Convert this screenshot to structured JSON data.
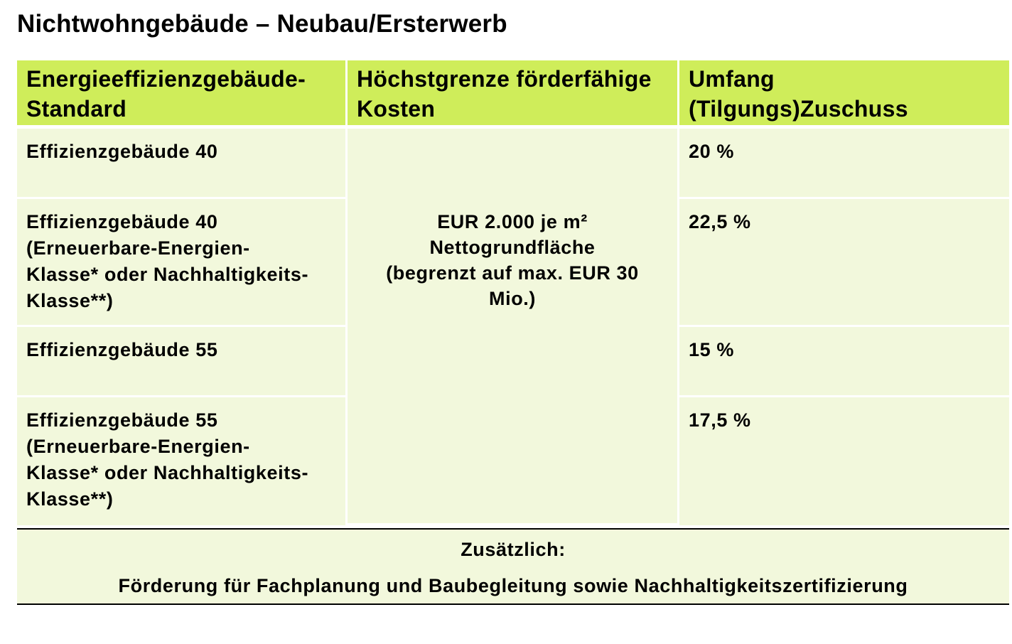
{
  "page": {
    "title": "Nichtwohngebäude – Neubau/Ersterwerb"
  },
  "table": {
    "headers": [
      "Energieeffizienzgebäude-\nStandard",
      "Höchstgrenze förderfähige\nKosten",
      "Umfang\n(Tilgungs)Zuschuss"
    ],
    "rows": [
      {
        "standard": "Effizienzgebäude  40",
        "zuschuss": "20 %"
      },
      {
        "standard": "Effizienzgebäude  40\n(Erneuerbare-Energien-\nKlasse*  oder Nachhaltigkeits-\nKlasse**)",
        "zuschuss": "22,5 %"
      },
      {
        "standard": "Effizienzgebäude  55",
        "zuschuss": "15 %"
      },
      {
        "standard": "Effizienzgebäude  55\n(Erneuerbare-Energien-\nKlasse*  oder Nachhaltigkeits-\nKlasse**)",
        "zuschuss": "17,5 %"
      }
    ],
    "merged_cost": "EUR 2.000  je  m²\nNettogrundfläche\n(begrenzt  auf  max.  EUR  30\nMio.)"
  },
  "footer": {
    "title": "Zusätzlich:",
    "text": "Förderung  für  Fachplanung  und  Baubegleitung  sowie  Nachhaltigkeitszertifizierung"
  },
  "colors": {
    "header_bg": "#cfed5a",
    "row_bg": "#f2f8dc"
  }
}
